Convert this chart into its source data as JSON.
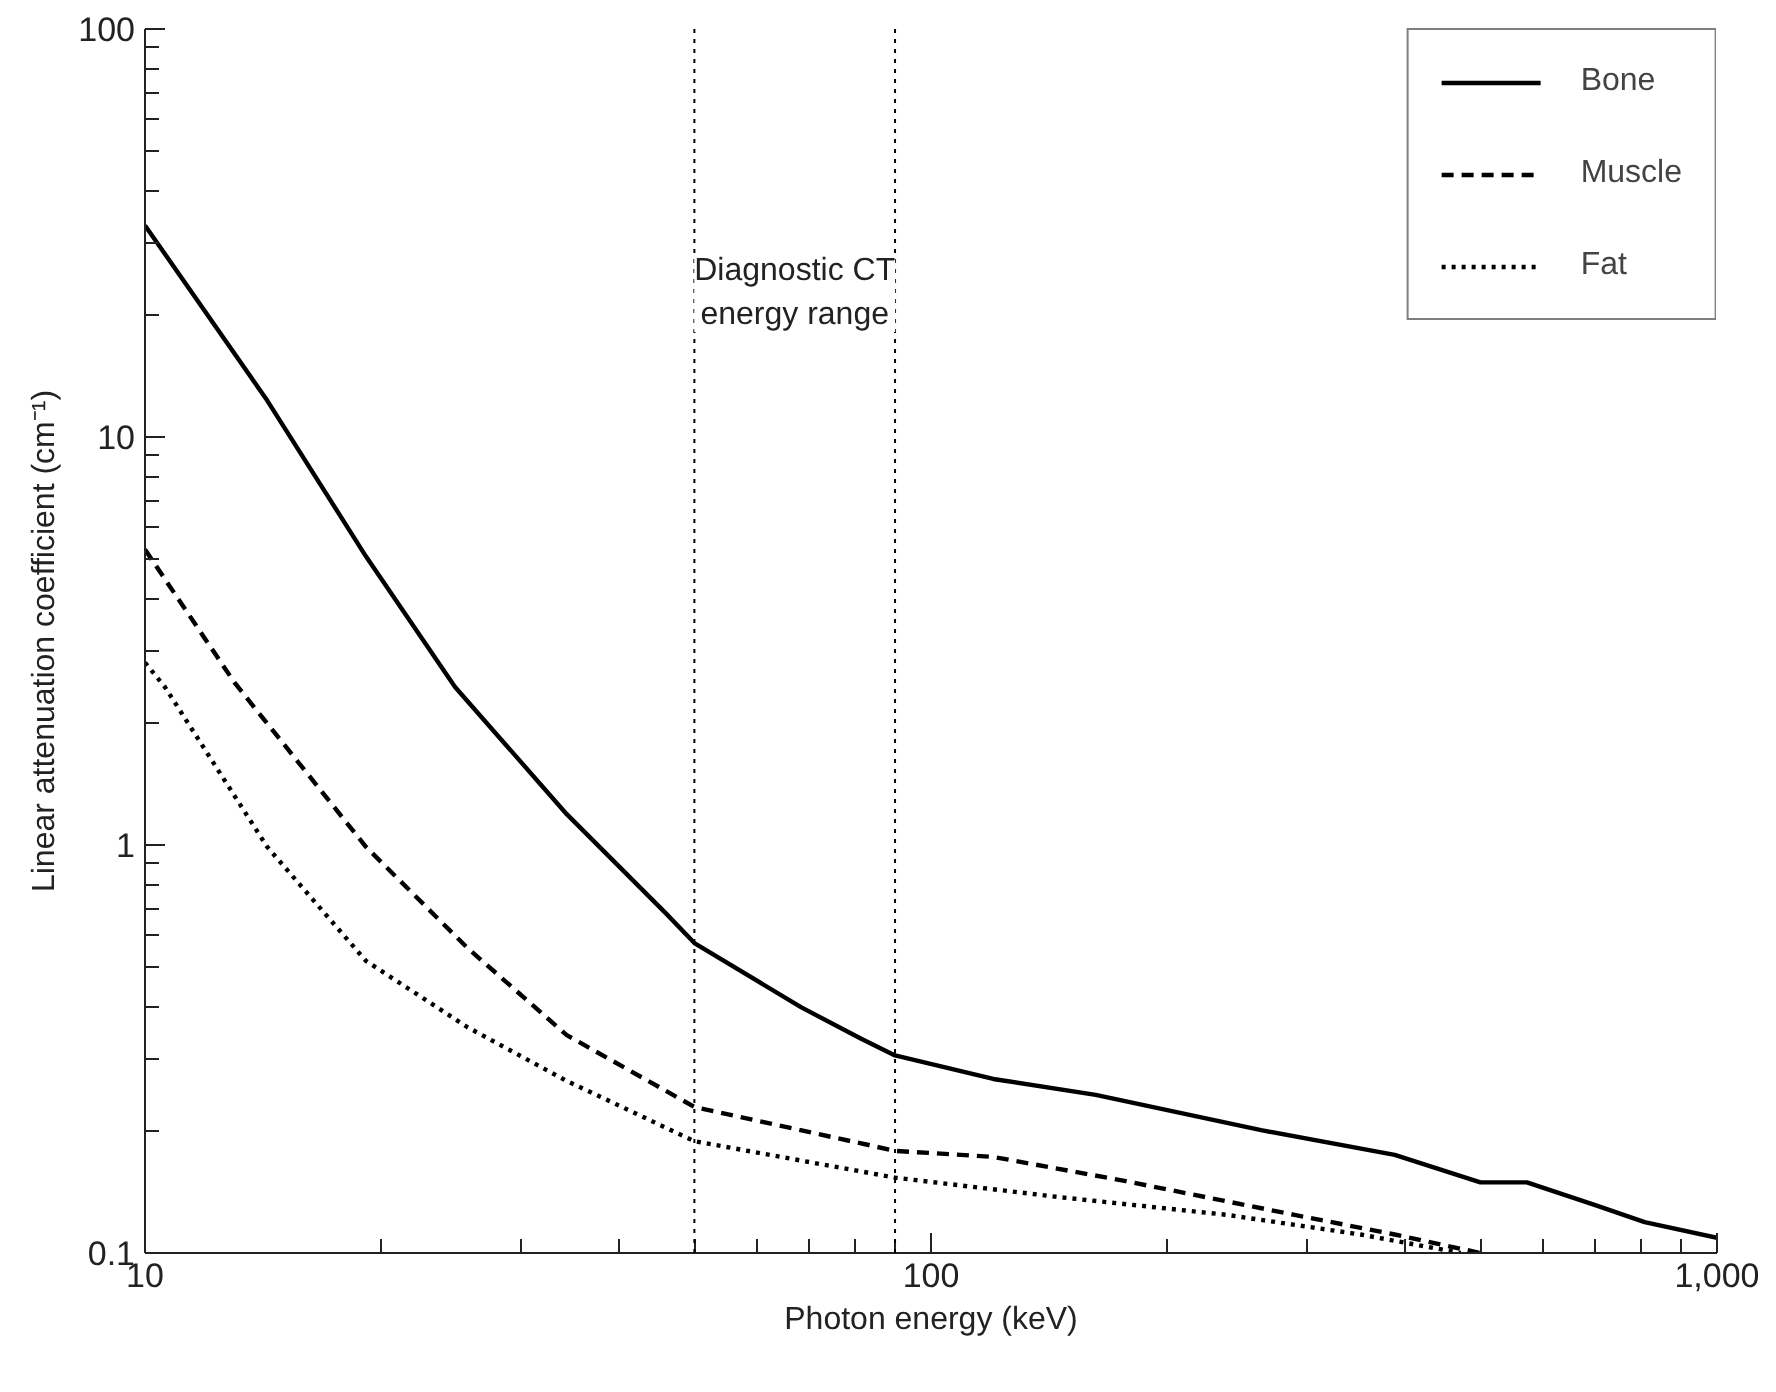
{
  "chart_data": {
    "type": "line",
    "xlabel": "Photon energy (keV)",
    "ylabel": "Linear attenuation coefficient (cm⁻¹)",
    "log": "xy",
    "xlim": [
      10,
      1000
    ],
    "ylim": [
      0.1,
      100
    ],
    "xticks": [
      10,
      100,
      {
        "value": 1000,
        "label": "1,000"
      }
    ],
    "yticks": [
      0.1,
      1,
      10,
      100
    ],
    "grid": false,
    "legend": "top right",
    "marker": "none",
    "series": [
      {
        "name": "Bone",
        "color": "#000000",
        "line_style": "solid",
        "x": [
          10,
          14.3,
          19.1,
          24.8,
          34.4,
          46,
          50,
          68.4,
          81.5,
          90,
          120,
          162,
          263,
          389,
          500,
          573,
          700,
          809,
          1000
        ],
        "values": [
          33,
          12.3,
          5.1,
          2.44,
          1.19,
          0.68,
          0.575,
          0.4,
          0.335,
          0.305,
          0.267,
          0.244,
          0.2,
          0.174,
          0.149,
          0.149,
          0.131,
          0.119,
          0.109
        ]
      },
      {
        "name": "Muscle",
        "color": "#000000",
        "line_style": "dashed",
        "x": [
          10,
          13,
          19.1,
          25.7,
          34.4,
          50,
          90,
          120,
          177,
          290,
          389,
          500
        ],
        "values": [
          5.3,
          2.5,
          0.99,
          0.56,
          0.342,
          0.228,
          0.178,
          0.172,
          0.15,
          0.124,
          0.111,
          0.1
        ]
      },
      {
        "name": "Fat",
        "color": "#000000",
        "line_style": "dotted",
        "x": [
          10,
          10.6,
          14.3,
          19.1,
          25.7,
          34.4,
          50,
          90,
          146,
          238,
          352,
          472
        ],
        "values": [
          2.8,
          2.44,
          0.99,
          0.52,
          0.358,
          0.264,
          0.188,
          0.153,
          0.137,
          0.124,
          0.111,
          0.1
        ]
      }
    ],
    "ref_lines": [
      {
        "axis": "x",
        "value": 50,
        "line_style": "dotted",
        "color": "#000000"
      },
      {
        "axis": "x",
        "value": 90,
        "line_style": "dotted",
        "color": "#000000"
      }
    ],
    "annotations": [
      "Diagnostic CT\nenergy range"
    ]
  }
}
